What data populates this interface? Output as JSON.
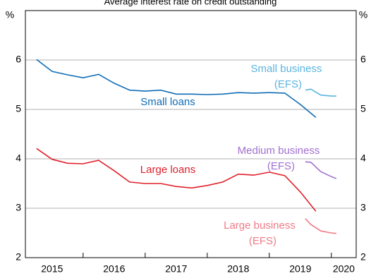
{
  "chart_data": {
    "type": "line",
    "title": "Average interest rate on credit outstanding",
    "y_unit": "%",
    "y2_unit": "%",
    "xlim": [
      2015.07,
      2020.4
    ],
    "xticks": [
      2015,
      2016,
      2017,
      2018,
      2019,
      2020
    ],
    "ylim": [
      2,
      7
    ],
    "yticks": [
      2,
      3,
      4,
      5,
      6
    ],
    "y2lim": [
      2,
      7
    ],
    "y2ticks": [
      2,
      3,
      4,
      5,
      6
    ],
    "grid": true,
    "series": [
      {
        "name": "Small loans",
        "color": "#0f6cb6",
        "x": [
          2015.25,
          2015.5,
          2015.75,
          2016,
          2016.25,
          2016.5,
          2016.75,
          2017,
          2017.25,
          2017.5,
          2017.75,
          2018,
          2018.25,
          2018.5,
          2018.75,
          2019,
          2019.25,
          2019.5,
          2019.75
        ],
        "values": [
          6.01,
          5.77,
          5.7,
          5.64,
          5.71,
          5.53,
          5.39,
          5.37,
          5.39,
          5.31,
          5.31,
          5.3,
          5.31,
          5.34,
          5.33,
          5.34,
          5.33,
          5.1,
          4.84
        ]
      },
      {
        "name": "Large loans",
        "color": "#e0202a",
        "x": [
          2015.25,
          2015.5,
          2015.75,
          2016,
          2016.25,
          2016.5,
          2016.75,
          2017,
          2017.25,
          2017.5,
          2017.75,
          2018,
          2018.25,
          2018.5,
          2018.75,
          2019,
          2019.25,
          2019.5,
          2019.75
        ],
        "values": [
          4.21,
          3.99,
          3.91,
          3.9,
          3.97,
          3.76,
          3.53,
          3.5,
          3.5,
          3.44,
          3.41,
          3.46,
          3.53,
          3.69,
          3.67,
          3.73,
          3.66,
          3.33,
          2.94
        ]
      },
      {
        "color": "#5bb4e0",
        "x": [
          2019.58,
          2019.67,
          2019.83,
          2020,
          2020.08
        ],
        "values": [
          5.39,
          5.41,
          5.29,
          5.27,
          5.27
        ]
      },
      {
        "color": "#a16fd0",
        "x": [
          2019.58,
          2019.67,
          2019.83,
          2020,
          2020.08
        ],
        "values": [
          3.94,
          3.93,
          3.74,
          3.64,
          3.6
        ]
      },
      {
        "color": "#f07a85",
        "x": [
          2019.58,
          2019.67,
          2019.83,
          2020,
          2020.08
        ],
        "values": [
          2.79,
          2.67,
          2.54,
          2.5,
          2.49
        ]
      }
    ],
    "annotations": [
      {
        "lines": [
          "Small business",
          "(EFS)"
        ],
        "color": "#5bb4e0"
      },
      {
        "lines": [
          "Medium business",
          "(EFS)"
        ],
        "color": "#a16fd0"
      },
      {
        "lines": [
          "Large business",
          "(EFS)"
        ],
        "color": "#f07a85"
      }
    ]
  }
}
